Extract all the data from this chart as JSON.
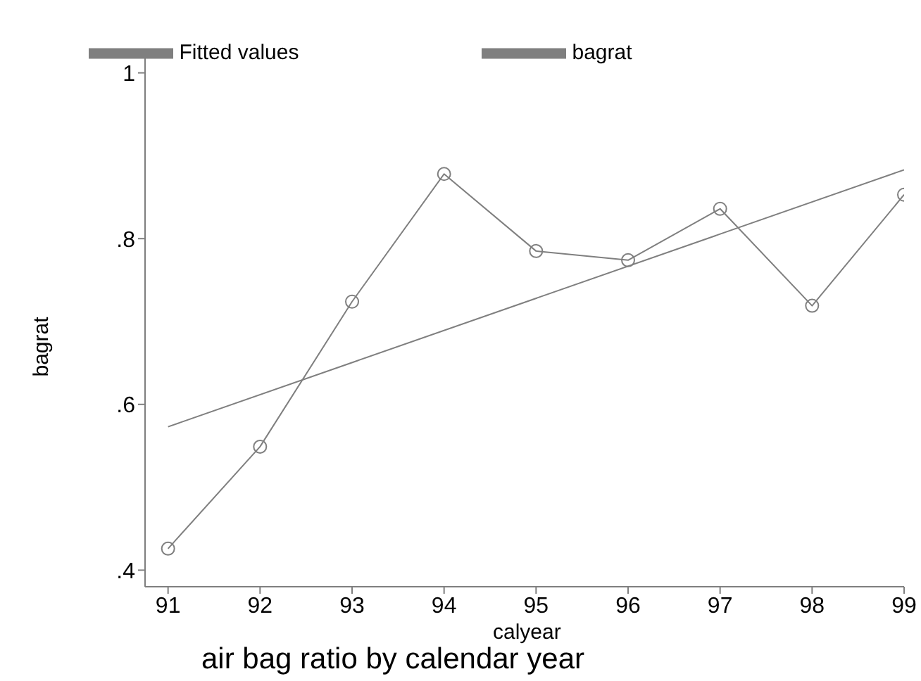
{
  "chart_data": {
    "type": "line",
    "title": "air bag ratio by calendar year",
    "xlabel": "calyear",
    "ylabel": "bagrat",
    "x": [
      91,
      92,
      93,
      94,
      95,
      96,
      97,
      98,
      99
    ],
    "series": [
      {
        "name": "Fitted values",
        "color": "#7f7f7f",
        "x": [
          91,
          99
        ],
        "values": [
          0.573,
          0.883
        ],
        "marker": "none"
      },
      {
        "name": "bagrat",
        "color": "#7f7f7f",
        "values": [
          0.426,
          0.549,
          0.724,
          0.878,
          0.785,
          0.774,
          0.836,
          0.719,
          0.853
        ],
        "marker": "circle"
      }
    ],
    "xlim": [
      90.75,
      99
    ],
    "xticks": [
      91,
      92,
      93,
      94,
      95,
      96,
      97,
      98,
      99
    ],
    "ylim": [
      0.38,
      1.02
    ],
    "yticks": [
      {
        "value": 0.4,
        "label": ".4"
      },
      {
        "value": 0.6,
        "label": ".6"
      },
      {
        "value": 0.8,
        "label": ".8"
      },
      1
    ],
    "grid": false,
    "legend": "top"
  }
}
